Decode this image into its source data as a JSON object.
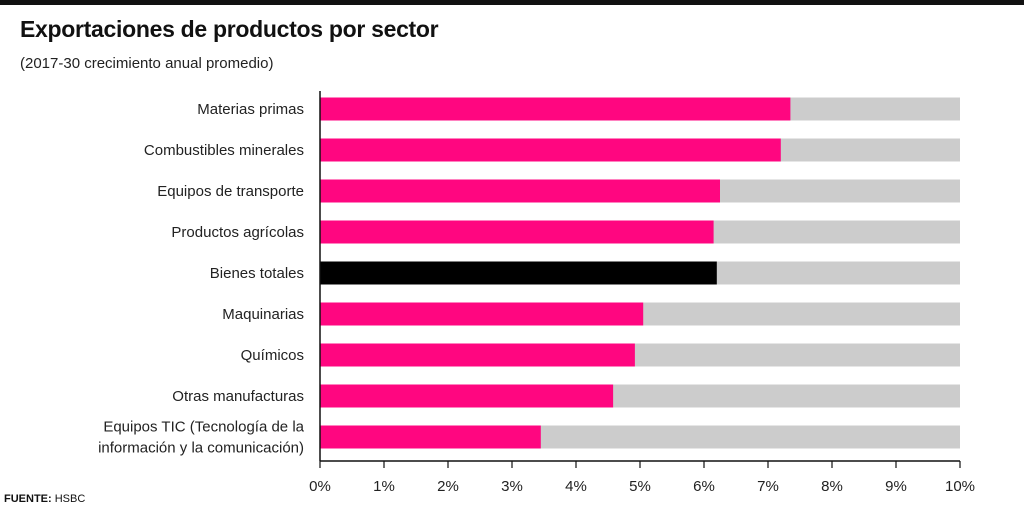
{
  "header": {
    "title": "Exportaciones de productos por sector",
    "subtitle": "(2017-30 crecimiento anual promedio)"
  },
  "footer": {
    "source_label": "FUENTE:",
    "source_value": "HSBC"
  },
  "colors": {
    "highlight": "#ff0680",
    "total": "#000000",
    "track": "#cccccc",
    "axis": "#111111"
  },
  "chart_data": {
    "type": "bar",
    "orientation": "horizontal",
    "categories": [
      [
        "Materias primas"
      ],
      [
        "Combustibles minerales"
      ],
      [
        "Equipos de transporte"
      ],
      [
        "Productos agrícolas"
      ],
      [
        "Bienes totales"
      ],
      [
        "Maquinarias"
      ],
      [
        "Químicos"
      ],
      [
        "Otras manufacturas"
      ],
      [
        "Equipos TIC (Tecnología de la",
        "información y la comunicación)"
      ]
    ],
    "values": [
      7.35,
      7.2,
      6.25,
      6.15,
      6.2,
      5.05,
      4.92,
      4.58,
      3.45
    ],
    "highlight_index": 4,
    "xlim": [
      0,
      10
    ],
    "xticks": [
      "0%",
      "1%",
      "2%",
      "3%",
      "4%",
      "5%",
      "6%",
      "7%",
      "8%",
      "9%",
      "10%"
    ],
    "background_track_max": 10,
    "grid": false,
    "xlabel": "",
    "ylabel": ""
  }
}
